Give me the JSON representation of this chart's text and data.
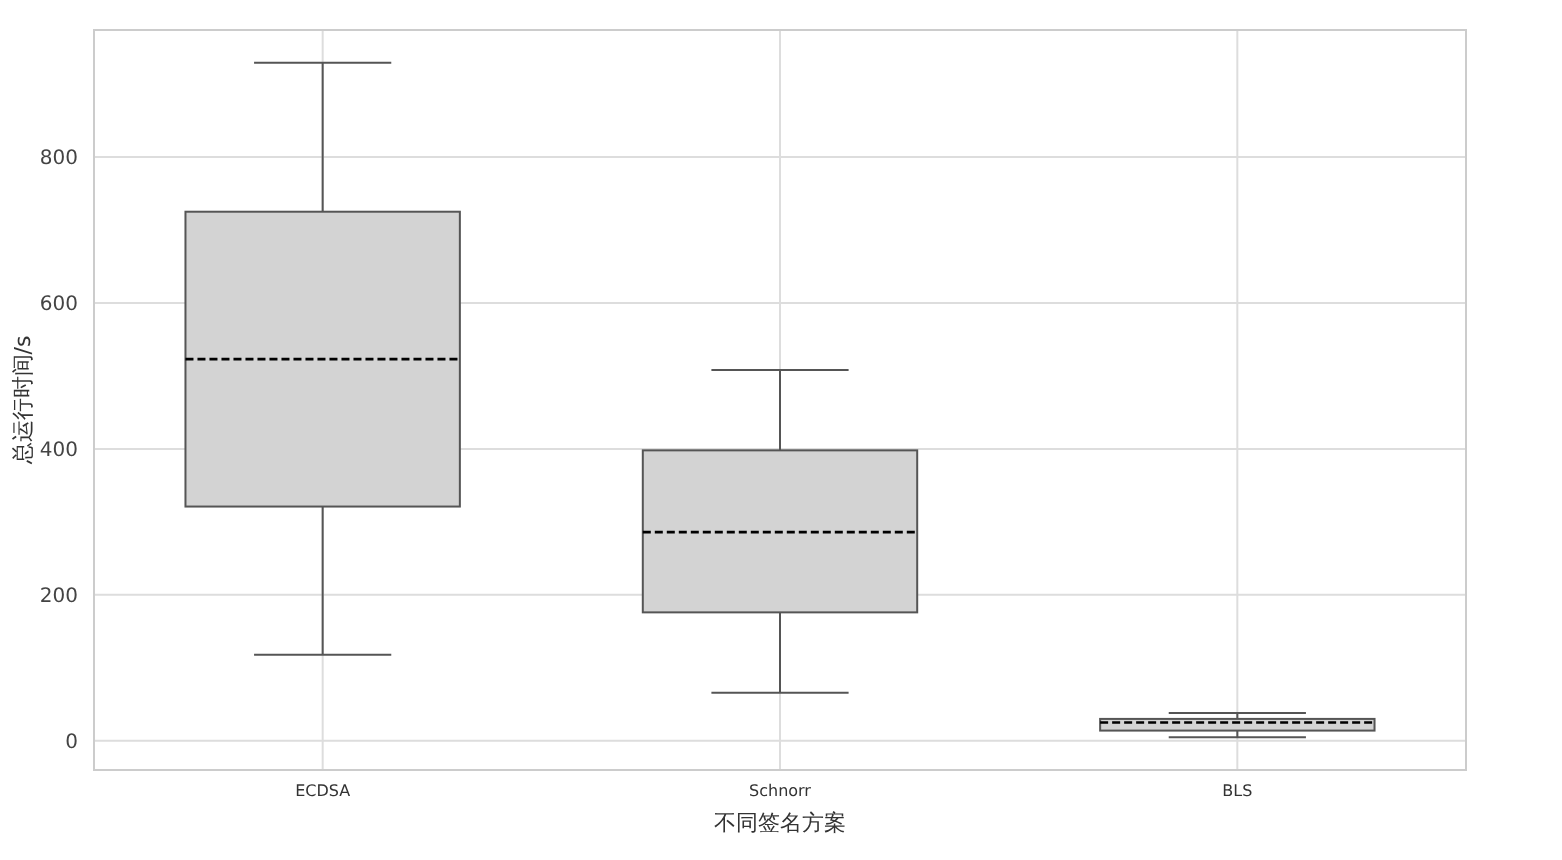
{
  "chart_data": {
    "type": "box",
    "xlabel": "不同签名方案",
    "ylabel": "总运行时间/s",
    "categories": [
      "ECDSA",
      "Schnorr",
      "BLS"
    ],
    "series": [
      {
        "color": "#d3d3d3",
        "boxes": [
          {
            "low": 118,
            "q1": 321,
            "median": 523,
            "q3": 725,
            "high": 929
          },
          {
            "low": 66,
            "q1": 176,
            "median": 286,
            "q3": 398,
            "high": 508
          },
          {
            "low": 5,
            "q1": 14,
            "median": 25,
            "q3": 30,
            "high": 38
          }
        ]
      }
    ],
    "ylim": [
      -40,
      974
    ],
    "yticks": [
      0,
      200,
      400,
      600,
      800
    ],
    "grid": true
  }
}
